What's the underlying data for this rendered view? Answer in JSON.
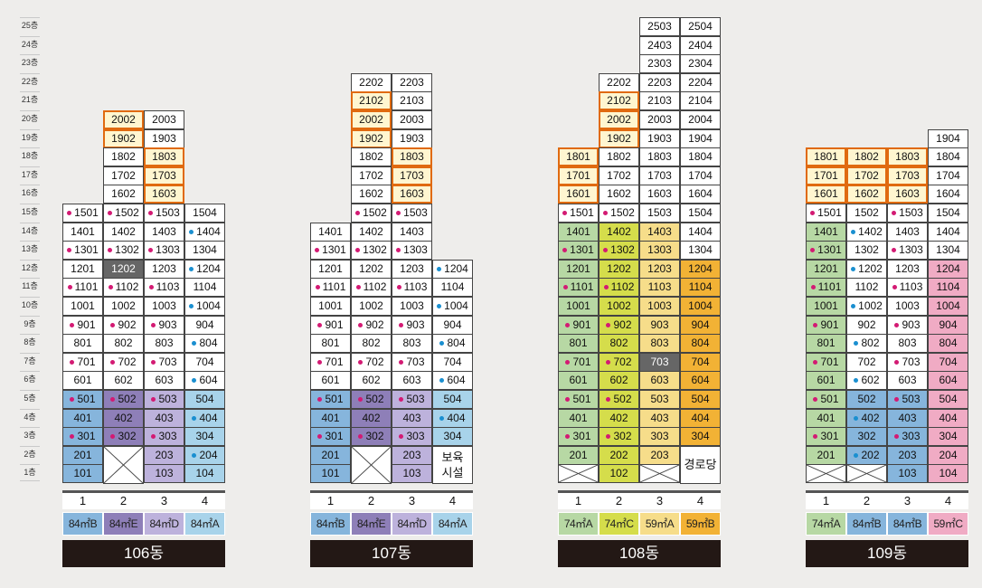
{
  "floor_labels": [
    "25층",
    "24층",
    "23층",
    "22층",
    "21층",
    "20층",
    "19층",
    "18층",
    "17층",
    "16층",
    "15층",
    "14층",
    "13층",
    "12층",
    "11층",
    "10층",
    "9층",
    "8층",
    "7층",
    "6층",
    "5층",
    "4층",
    "3층",
    "2층",
    "1층"
  ],
  "colors": {
    "purple": "#d31a73",
    "blue": "#1a8fd0",
    "highlight": "#e06a10",
    "sel": "#666666",
    "types": {
      "84㎡A": "#a8d3ea",
      "84㎡B": "#86b5dc",
      "84㎡C": "#dc9bc0",
      "84㎡D": "#bdb2dc",
      "84㎡E": "#8e7fb8",
      "74㎡A": "#b7d8a4",
      "74㎡C": "#d5dd4b",
      "59㎡A": "#f6dd8a",
      "59㎡B": "#f2b235",
      "59㎡C": "#f0abc4"
    }
  },
  "buildings": [
    {
      "name": "106동",
      "units": [
        "1",
        "2",
        "3",
        "4"
      ],
      "types": [
        "84㎡B",
        "84㎡E",
        "84㎡D",
        "84㎡A"
      ]
    },
    {
      "name": "107동",
      "units": [
        "1",
        "2",
        "3",
        "4"
      ],
      "types": [
        "84㎡B",
        "84㎡E",
        "84㎡D",
        "84㎡A"
      ]
    },
    {
      "name": "108동",
      "units": [
        "1",
        "2",
        "3",
        "4"
      ],
      "types": [
        "74㎡A",
        "74㎡C",
        "59㎡A",
        "59㎡B"
      ]
    },
    {
      "name": "109동",
      "units": [
        "1",
        "2",
        "3",
        "4"
      ],
      "types": [
        "74㎡A",
        "84㎡B",
        "84㎡B",
        "59㎡C"
      ]
    }
  ],
  "notes": {
    "daycare": "보육 시설",
    "senior": "경로당"
  },
  "b106": {
    "c0": [
      [
        "1501",
        "p"
      ],
      [
        "1401",
        ""
      ],
      [
        "1301",
        "p"
      ],
      [
        "1201",
        ""
      ],
      [
        "1101",
        "p"
      ],
      [
        "1001",
        ""
      ],
      [
        "901",
        "p"
      ],
      [
        "801",
        ""
      ],
      [
        "701",
        "p"
      ],
      [
        "601",
        ""
      ],
      [
        "501",
        "p"
      ],
      [
        "401",
        ""
      ],
      [
        "301",
        "p"
      ],
      [
        "201",
        ""
      ],
      [
        "101",
        ""
      ]
    ],
    "c1": [
      [
        "2002",
        "",
        "h"
      ],
      [
        "1902",
        "",
        "h"
      ],
      [
        "1802",
        ""
      ],
      [
        "1702",
        ""
      ],
      [
        "1602",
        ""
      ],
      [
        "1502",
        "p"
      ],
      [
        "1402",
        ""
      ],
      [
        "1302",
        "p"
      ],
      [
        "1202",
        "",
        "s"
      ],
      [
        "1102",
        "p"
      ],
      [
        "1002",
        ""
      ],
      [
        "902",
        "p"
      ],
      [
        "802",
        ""
      ],
      [
        "702",
        "p"
      ],
      [
        "602",
        ""
      ],
      [
        "502",
        "p"
      ],
      [
        "402",
        ""
      ],
      [
        "302",
        "p"
      ]
    ],
    "c2": [
      [
        "2003",
        ""
      ],
      [
        "1903",
        ""
      ],
      [
        "1803",
        "",
        "h"
      ],
      [
        "1703",
        "",
        "h"
      ],
      [
        "1603",
        "",
        "h"
      ],
      [
        "1503",
        "p"
      ],
      [
        "1403",
        ""
      ],
      [
        "1303",
        "p"
      ],
      [
        "1203",
        ""
      ],
      [
        "1103",
        "p"
      ],
      [
        "1003",
        ""
      ],
      [
        "903",
        "p"
      ],
      [
        "803",
        ""
      ],
      [
        "703",
        "p"
      ],
      [
        "603",
        ""
      ],
      [
        "503",
        "p"
      ],
      [
        "403",
        ""
      ],
      [
        "303",
        "p"
      ],
      [
        "203",
        ""
      ],
      [
        "103",
        ""
      ]
    ],
    "c3": [
      [
        "1504",
        ""
      ],
      [
        "1404",
        "b"
      ],
      [
        "1304",
        ""
      ],
      [
        "1204",
        "b"
      ],
      [
        "1104",
        ""
      ],
      [
        "1004",
        "b"
      ],
      [
        "904",
        ""
      ],
      [
        "804",
        "b"
      ],
      [
        "704",
        ""
      ],
      [
        "604",
        "b"
      ],
      [
        "504",
        ""
      ],
      [
        "404",
        "b"
      ],
      [
        "304",
        ""
      ],
      [
        "204",
        "b"
      ],
      [
        "104",
        ""
      ]
    ]
  },
  "b107": {
    "c0": [
      [
        "1401",
        ""
      ],
      [
        "1301",
        "p"
      ],
      [
        "1201",
        ""
      ],
      [
        "1101",
        "p"
      ],
      [
        "1001",
        ""
      ],
      [
        "901",
        "p"
      ],
      [
        "801",
        ""
      ],
      [
        "701",
        "p"
      ],
      [
        "601",
        ""
      ],
      [
        "501",
        "p"
      ],
      [
        "401",
        ""
      ],
      [
        "301",
        "p"
      ],
      [
        "201",
        ""
      ],
      [
        "101",
        ""
      ]
    ],
    "c1": [
      [
        "2202",
        ""
      ],
      [
        "2102",
        "",
        "h"
      ],
      [
        "2002",
        "",
        "h"
      ],
      [
        "1902",
        "",
        "h"
      ],
      [
        "1802",
        ""
      ],
      [
        "1702",
        ""
      ],
      [
        "1602",
        ""
      ],
      [
        "1502",
        "p"
      ],
      [
        "1402",
        ""
      ],
      [
        "1302",
        "p"
      ],
      [
        "1202",
        ""
      ],
      [
        "1102",
        "p"
      ],
      [
        "1002",
        ""
      ],
      [
        "902",
        "p"
      ],
      [
        "802",
        ""
      ],
      [
        "702",
        "p"
      ],
      [
        "602",
        ""
      ],
      [
        "502",
        "p"
      ],
      [
        "402",
        ""
      ],
      [
        "302",
        "p"
      ]
    ],
    "c2": [
      [
        "2203",
        ""
      ],
      [
        "2103",
        ""
      ],
      [
        "2003",
        ""
      ],
      [
        "1903",
        ""
      ],
      [
        "1803",
        "",
        "h"
      ],
      [
        "1703",
        "",
        "h"
      ],
      [
        "1603",
        "",
        "h"
      ],
      [
        "1503",
        "p"
      ],
      [
        "1403",
        ""
      ],
      [
        "1303",
        "p"
      ],
      [
        "1203",
        ""
      ],
      [
        "1103",
        "p"
      ],
      [
        "1003",
        ""
      ],
      [
        "903",
        "p"
      ],
      [
        "803",
        ""
      ],
      [
        "703",
        "p"
      ],
      [
        "603",
        ""
      ],
      [
        "503",
        "p"
      ],
      [
        "403",
        ""
      ],
      [
        "303",
        "p"
      ],
      [
        "203",
        ""
      ],
      [
        "103",
        ""
      ]
    ],
    "c3": [
      [
        "1204",
        "b"
      ],
      [
        "1104",
        ""
      ],
      [
        "1004",
        "b"
      ],
      [
        "904",
        ""
      ],
      [
        "804",
        "b"
      ],
      [
        "704",
        ""
      ],
      [
        "604",
        "b"
      ],
      [
        "504",
        ""
      ],
      [
        "404",
        "b"
      ],
      [
        "304",
        ""
      ]
    ]
  },
  "b108": {
    "c0": [
      [
        "1801",
        "",
        "h"
      ],
      [
        "1701",
        "",
        "h"
      ],
      [
        "1601",
        "",
        "h"
      ],
      [
        "1501",
        "p"
      ],
      [
        "1401",
        ""
      ],
      [
        "1301",
        "p"
      ],
      [
        "1201",
        ""
      ],
      [
        "1101",
        "p"
      ],
      [
        "1001",
        ""
      ],
      [
        "901",
        "p"
      ],
      [
        "801",
        ""
      ],
      [
        "701",
        "p"
      ],
      [
        "601",
        ""
      ],
      [
        "501",
        "p"
      ],
      [
        "401",
        ""
      ],
      [
        "301",
        "p"
      ],
      [
        "201",
        ""
      ]
    ],
    "c1": [
      [
        "2202",
        ""
      ],
      [
        "2102",
        "",
        "h"
      ],
      [
        "2002",
        "",
        "h"
      ],
      [
        "1902",
        "",
        "h"
      ],
      [
        "1802",
        ""
      ],
      [
        "1702",
        ""
      ],
      [
        "1602",
        ""
      ],
      [
        "1502",
        "p"
      ],
      [
        "1402",
        ""
      ],
      [
        "1302",
        "p"
      ],
      [
        "1202",
        ""
      ],
      [
        "1102",
        "p"
      ],
      [
        "1002",
        ""
      ],
      [
        "902",
        "p"
      ],
      [
        "802",
        ""
      ],
      [
        "702",
        "p"
      ],
      [
        "602",
        ""
      ],
      [
        "502",
        "p"
      ],
      [
        "402",
        ""
      ],
      [
        "302",
        "p"
      ],
      [
        "202",
        ""
      ],
      [
        "102",
        ""
      ]
    ],
    "c2": [
      [
        "2503",
        ""
      ],
      [
        "2403",
        ""
      ],
      [
        "2303",
        ""
      ],
      [
        "2203",
        ""
      ],
      [
        "2103",
        ""
      ],
      [
        "2003",
        ""
      ],
      [
        "1903",
        ""
      ],
      [
        "1803",
        ""
      ],
      [
        "1703",
        ""
      ],
      [
        "1603",
        ""
      ],
      [
        "1503",
        ""
      ],
      [
        "1403",
        ""
      ],
      [
        "1303",
        ""
      ],
      [
        "1203",
        ""
      ],
      [
        "1103",
        ""
      ],
      [
        "1003",
        ""
      ],
      [
        "903",
        ""
      ],
      [
        "803",
        ""
      ],
      [
        "703",
        "",
        "s"
      ],
      [
        "603",
        ""
      ],
      [
        "503",
        ""
      ],
      [
        "403",
        ""
      ],
      [
        "303",
        ""
      ],
      [
        "203",
        ""
      ]
    ],
    "c3": [
      [
        "2504",
        ""
      ],
      [
        "2404",
        ""
      ],
      [
        "2304",
        ""
      ],
      [
        "2204",
        ""
      ],
      [
        "2104",
        ""
      ],
      [
        "2004",
        ""
      ],
      [
        "1904",
        ""
      ],
      [
        "1804",
        ""
      ],
      [
        "1704",
        ""
      ],
      [
        "1604",
        ""
      ],
      [
        "1504",
        ""
      ],
      [
        "1404",
        ""
      ],
      [
        "1304",
        ""
      ],
      [
        "1204",
        ""
      ],
      [
        "1104",
        ""
      ],
      [
        "1004",
        ""
      ],
      [
        "904",
        ""
      ],
      [
        "804",
        ""
      ],
      [
        "704",
        ""
      ],
      [
        "604",
        ""
      ],
      [
        "504",
        ""
      ],
      [
        "404",
        ""
      ],
      [
        "304",
        ""
      ]
    ]
  },
  "b109": {
    "c0": [
      [
        "1801",
        "",
        "h"
      ],
      [
        "1701",
        "",
        "h"
      ],
      [
        "1601",
        "",
        "h"
      ],
      [
        "1501",
        "p"
      ],
      [
        "1401",
        ""
      ],
      [
        "1301",
        "p"
      ],
      [
        "1201",
        ""
      ],
      [
        "1101",
        "p"
      ],
      [
        "1001",
        ""
      ],
      [
        "901",
        "p"
      ],
      [
        "801",
        ""
      ],
      [
        "701",
        "p"
      ],
      [
        "601",
        ""
      ],
      [
        "501",
        "p"
      ],
      [
        "401",
        ""
      ],
      [
        "301",
        "p"
      ],
      [
        "201",
        ""
      ]
    ],
    "c1": [
      [
        "1802",
        "",
        "h"
      ],
      [
        "1702",
        "",
        "h"
      ],
      [
        "1602",
        "",
        "h"
      ],
      [
        "1502",
        ""
      ],
      [
        "1402",
        "b"
      ],
      [
        "1302",
        ""
      ],
      [
        "1202",
        "b"
      ],
      [
        "1102",
        ""
      ],
      [
        "1002",
        "b"
      ],
      [
        "902",
        ""
      ],
      [
        "802",
        "b"
      ],
      [
        "702",
        ""
      ],
      [
        "602",
        "b"
      ],
      [
        "502",
        ""
      ],
      [
        "402",
        "b"
      ],
      [
        "302",
        ""
      ],
      [
        "202",
        "b"
      ]
    ],
    "c2": [
      [
        "1803",
        "",
        "h"
      ],
      [
        "1703",
        "",
        "h"
      ],
      [
        "1603",
        "",
        "h"
      ],
      [
        "1503",
        "p"
      ],
      [
        "1403",
        ""
      ],
      [
        "1303",
        "p"
      ],
      [
        "1203",
        ""
      ],
      [
        "1103",
        "p"
      ],
      [
        "1003",
        ""
      ],
      [
        "903",
        "p"
      ],
      [
        "803",
        ""
      ],
      [
        "703",
        "p"
      ],
      [
        "603",
        ""
      ],
      [
        "503",
        "p"
      ],
      [
        "403",
        ""
      ],
      [
        "303",
        "p"
      ],
      [
        "203",
        ""
      ],
      [
        "103",
        ""
      ]
    ],
    "c3": [
      [
        "1904",
        ""
      ],
      [
        "1804",
        ""
      ],
      [
        "1704",
        ""
      ],
      [
        "1604",
        ""
      ],
      [
        "1504",
        ""
      ],
      [
        "1404",
        ""
      ],
      [
        "1304",
        ""
      ],
      [
        "1204",
        ""
      ],
      [
        "1104",
        ""
      ],
      [
        "1004",
        ""
      ],
      [
        "904",
        ""
      ],
      [
        "804",
        ""
      ],
      [
        "704",
        ""
      ],
      [
        "604",
        ""
      ],
      [
        "504",
        ""
      ],
      [
        "404",
        ""
      ],
      [
        "304",
        ""
      ],
      [
        "204",
        ""
      ],
      [
        "104",
        ""
      ]
    ]
  }
}
